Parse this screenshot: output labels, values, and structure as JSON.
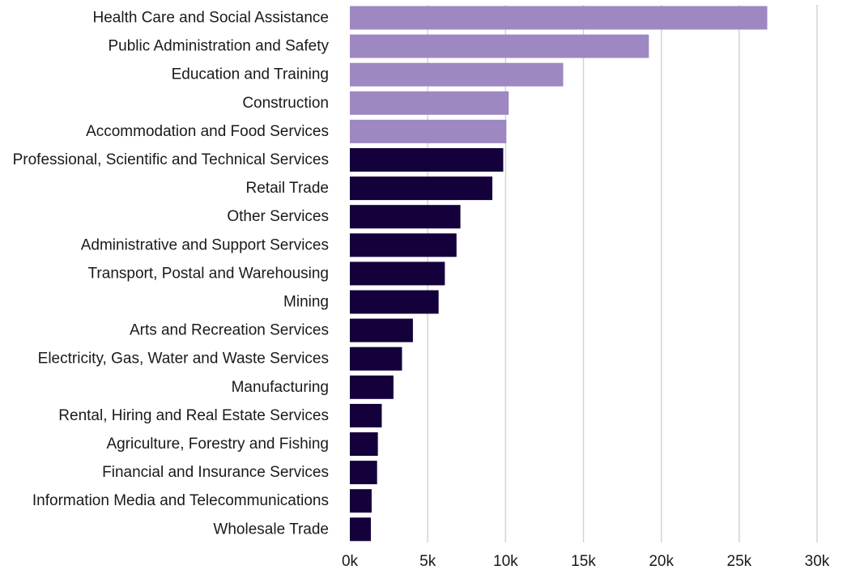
{
  "chart_data": {
    "type": "bar",
    "orientation": "horizontal",
    "categories": [
      "Health Care and Social Assistance",
      "Public Administration and Safety",
      "Education and Training",
      "Construction",
      "Accommodation and Food Services",
      "Professional, Scientific and Technical Services",
      "Retail Trade",
      "Other Services",
      "Administrative and Support Services",
      "Transport, Postal and Warehousing",
      "Mining",
      "Arts and Recreation Services",
      "Electricity, Gas, Water and Waste Services",
      "Manufacturing",
      "Rental, Hiring and Real Estate Services",
      "Agriculture, Forestry and Fishing",
      "Financial and Insurance Services",
      "Information Media and Telecommunications",
      "Wholesale Trade"
    ],
    "values": [
      26800,
      19200,
      13700,
      10200,
      10050,
      9850,
      9150,
      7100,
      6850,
      6100,
      5700,
      4050,
      3350,
      2800,
      2050,
      1800,
      1750,
      1400,
      1350
    ],
    "highlight_count": 5,
    "colors": {
      "highlight": "#9e88c2",
      "default": "#14003a",
      "grid": "#d4d4d4"
    },
    "title": "",
    "xlabel": "",
    "ylabel": "",
    "xlim": [
      0,
      30000
    ],
    "x_ticks": [
      0,
      5000,
      10000,
      15000,
      20000,
      25000,
      30000
    ],
    "x_tick_labels": [
      "0k",
      "5k",
      "10k",
      "15k",
      "20k",
      "25k",
      "30k"
    ],
    "grid": "vertical",
    "legend": "none"
  }
}
